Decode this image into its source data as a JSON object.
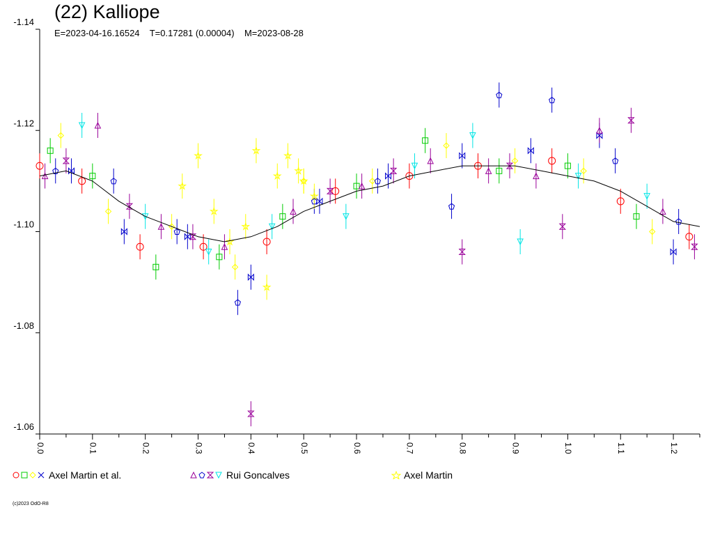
{
  "chart_data": {
    "type": "scatter",
    "title": "(22) Kalliope",
    "subtitle": "E=2023-04-16.16524    T=0.17281 (0.00004)    M=2023-08-28",
    "xlabel": "",
    "ylabel": "",
    "xlim": [
      0.0,
      1.25
    ],
    "ylim": [
      -1.14,
      -1.06
    ],
    "y_inverted": true,
    "x_ticks": [
      "0.0",
      "0.1",
      "0.2",
      "0.3",
      "0.4",
      "0.5",
      "0.6",
      "0.7",
      "0.8",
      "0.9",
      "1.0",
      "1.1",
      "1.2"
    ],
    "y_ticks": [
      "-1.14",
      "-1.12",
      "-1.10",
      "-1.08",
      "-1.06"
    ],
    "grid": false,
    "legend_position": "bottom",
    "curve": {
      "color": "#000000",
      "x": [
        0.0,
        0.05,
        0.1,
        0.15,
        0.2,
        0.25,
        0.3,
        0.35,
        0.4,
        0.45,
        0.5,
        0.55,
        0.6,
        0.65,
        0.7,
        0.75,
        0.8,
        0.85,
        0.9,
        0.95,
        1.0,
        1.05,
        1.1,
        1.15,
        1.2,
        1.25
      ],
      "y": [
        -1.111,
        -1.112,
        -1.11,
        -1.106,
        -1.103,
        -1.101,
        -1.099,
        -1.098,
        -1.099,
        -1.101,
        -1.104,
        -1.106,
        -1.108,
        -1.109,
        -1.111,
        -1.112,
        -1.113,
        -1.113,
        -1.113,
        -1.112,
        -1.111,
        -1.11,
        -1.108,
        -1.105,
        -1.102,
        -1.101
      ]
    },
    "series": [
      {
        "name": "Axel Martin et al.",
        "markers": [
          "circle",
          "square",
          "diamond",
          "bowtie"
        ],
        "colors": [
          "#ff0000",
          "#00cc00",
          "#ffff00",
          "#0000cc"
        ],
        "x": [
          0.0,
          0.02,
          0.04,
          0.06,
          0.08,
          0.1,
          0.13,
          0.16,
          0.19,
          0.22,
          0.25,
          0.28,
          0.31,
          0.34,
          0.37,
          0.4,
          0.43,
          0.46,
          0.5,
          0.53,
          0.56,
          0.6,
          0.63,
          0.66,
          0.7,
          0.73,
          0.77,
          0.8,
          0.83,
          0.87,
          0.9,
          0.93,
          0.97,
          1.0,
          1.03,
          1.06,
          1.1,
          1.13,
          1.16,
          1.2,
          1.23
        ],
        "y": [
          -1.113,
          -1.116,
          -1.119,
          -1.112,
          -1.11,
          -1.111,
          -1.104,
          -1.1,
          -1.097,
          -1.093,
          -1.101,
          -1.099,
          -1.097,
          -1.095,
          -1.093,
          -1.091,
          -1.098,
          -1.103,
          -1.11,
          -1.106,
          -1.108,
          -1.109,
          -1.11,
          -1.111,
          -1.111,
          -1.118,
          -1.117,
          -1.115,
          -1.113,
          -1.112,
          -1.114,
          -1.116,
          -1.114,
          -1.113,
          -1.112,
          -1.119,
          -1.106,
          -1.103,
          -1.1,
          -1.096,
          -1.099
        ]
      },
      {
        "name": "Rui Goncalves",
        "markers": [
          "triangle",
          "pentagon",
          "hourglass",
          "tri-down"
        ],
        "colors": [
          "#990099",
          "#0000cc",
          "#990099",
          "#00e5e5"
        ],
        "x": [
          0.01,
          0.03,
          0.05,
          0.08,
          0.11,
          0.14,
          0.17,
          0.2,
          0.23,
          0.26,
          0.29,
          0.32,
          0.35,
          0.375,
          0.4,
          0.44,
          0.48,
          0.52,
          0.55,
          0.58,
          0.61,
          0.64,
          0.67,
          0.71,
          0.74,
          0.78,
          0.8,
          0.82,
          0.85,
          0.87,
          0.89,
          0.91,
          0.94,
          0.97,
          0.99,
          1.02,
          1.06,
          1.09,
          1.12,
          1.15,
          1.18,
          1.21,
          1.24
        ],
        "y": [
          -1.111,
          -1.112,
          -1.114,
          -1.121,
          -1.121,
          -1.11,
          -1.105,
          -1.103,
          -1.101,
          -1.1,
          -1.099,
          -1.096,
          -1.097,
          -1.086,
          -1.064,
          -1.101,
          -1.104,
          -1.106,
          -1.108,
          -1.103,
          -1.109,
          -1.11,
          -1.112,
          -1.113,
          -1.114,
          -1.105,
          -1.096,
          -1.119,
          -1.112,
          -1.127,
          -1.113,
          -1.098,
          -1.111,
          -1.126,
          -1.101,
          -1.111,
          -1.12,
          -1.114,
          -1.122,
          -1.107,
          -1.104,
          -1.102,
          -1.097
        ]
      },
      {
        "name": "Axel Martin",
        "markers": [
          "star"
        ],
        "colors": [
          "#ffff00"
        ],
        "x": [
          0.27,
          0.3,
          0.33,
          0.36,
          0.39,
          0.41,
          0.43,
          0.45,
          0.47,
          0.49,
          0.5,
          0.52
        ],
        "y": [
          -1.109,
          -1.115,
          -1.104,
          -1.098,
          -1.101,
          -1.116,
          -1.089,
          -1.111,
          -1.115,
          -1.112,
          -1.11,
          -1.107
        ]
      }
    ]
  },
  "legend": {
    "items": [
      "Axel Martin et al.",
      "Rui Goncalves",
      "Axel Martin"
    ]
  },
  "footer": {
    "copyright": "(c)2023 OdO-R8"
  }
}
